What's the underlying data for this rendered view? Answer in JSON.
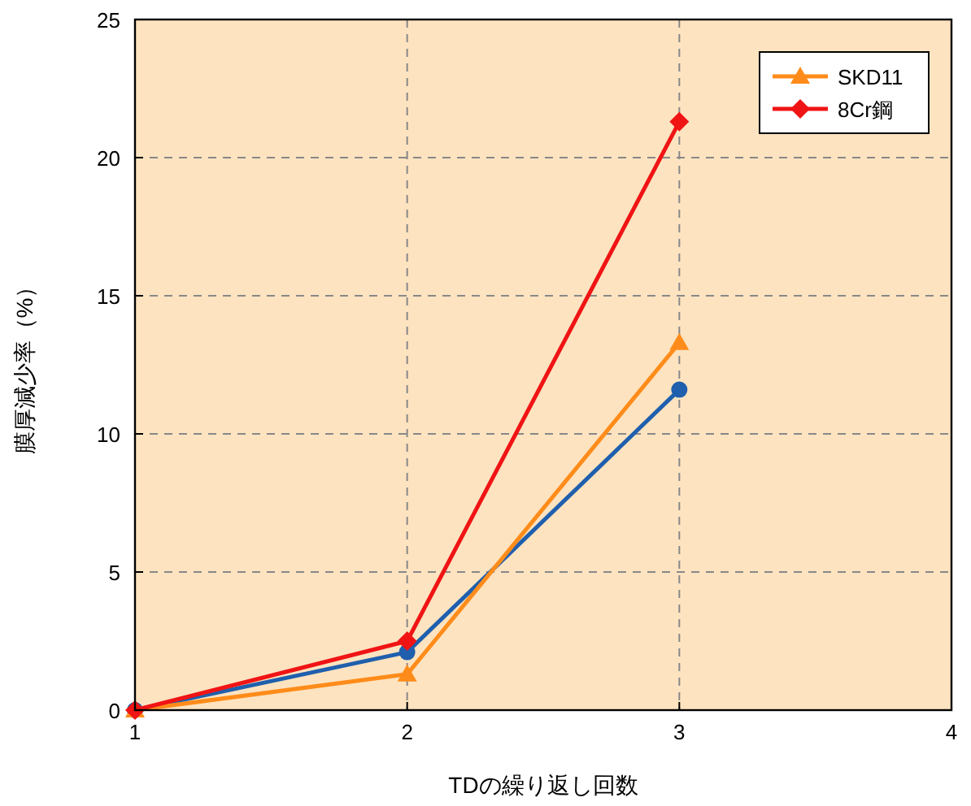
{
  "chart_data": {
    "type": "line",
    "xlabel": "TDの繰り返し回数",
    "ylabel": "膜厚減少率（%）",
    "x": [
      1,
      2,
      3
    ],
    "xlim": [
      1,
      4
    ],
    "xticks": [
      1,
      2,
      3,
      4
    ],
    "ylim": [
      0,
      25
    ],
    "yticks": [
      0,
      5,
      10,
      15,
      20,
      25
    ],
    "grid": true,
    "legend": "top right",
    "series": [
      {
        "color": "#1f5fad",
        "marker": "circle",
        "values": [
          0,
          2.1,
          11.6
        ]
      },
      {
        "name": "SKD11",
        "color": "#ff8c1a",
        "marker": "triangle",
        "values": [
          0,
          1.3,
          13.3
        ]
      },
      {
        "name": "8Cr鋼",
        "color": "#f01414",
        "marker": "diamond",
        "values": [
          0,
          2.5,
          21.3
        ]
      }
    ]
  }
}
